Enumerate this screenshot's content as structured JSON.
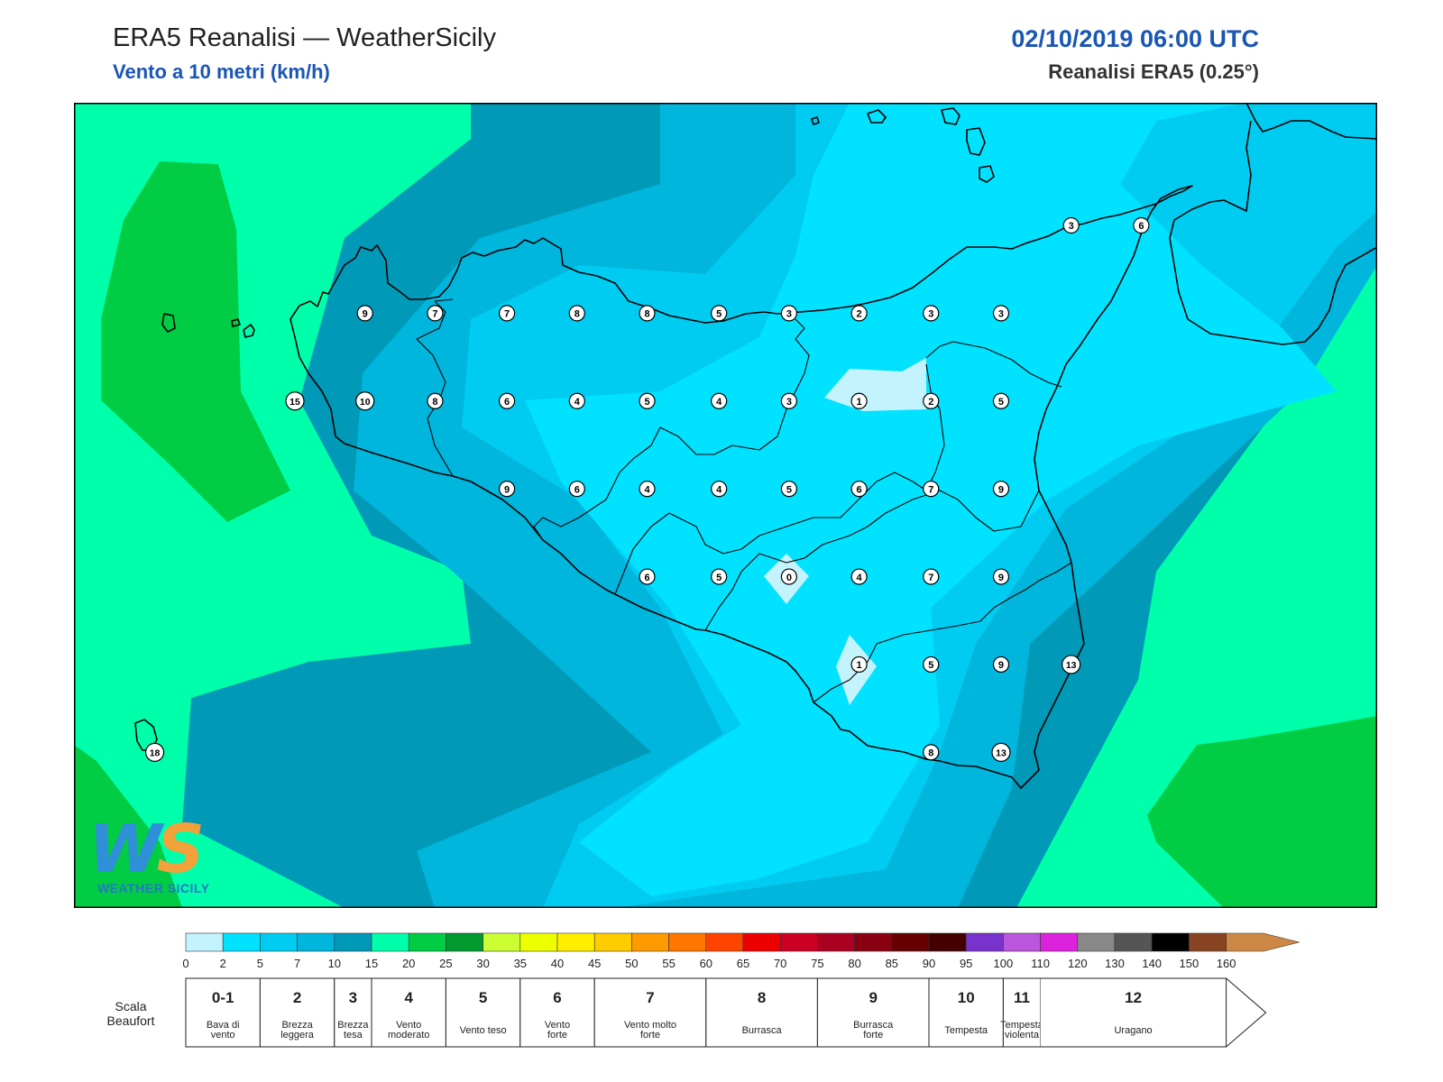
{
  "header": {
    "title": "ERA5 Reanalisi — WeatherSicily",
    "subtitle": "Vento a 10 metri (km/h)",
    "datetime": "02/10/2019 06:00 UTC",
    "resolution": "Reanalisi ERA5 (0.25°)"
  },
  "logo": {
    "letters_w": "W",
    "letters_s": "S",
    "name": "WEATHER SICILY"
  },
  "map": {
    "stations": [
      {
        "v": "9",
        "lon": 12.74,
        "lat": 38.17
      },
      {
        "v": "7",
        "lon": 13.14,
        "lat": 38.17
      },
      {
        "v": "7",
        "lon": 13.55,
        "lat": 38.17
      },
      {
        "v": "8",
        "lon": 13.95,
        "lat": 38.17
      },
      {
        "v": "8",
        "lon": 14.35,
        "lat": 38.17
      },
      {
        "v": "5",
        "lon": 14.76,
        "lat": 38.17
      },
      {
        "v": "3",
        "lon": 15.16,
        "lat": 38.17
      },
      {
        "v": "2",
        "lon": 15.56,
        "lat": 38.17
      },
      {
        "v": "3",
        "lon": 15.97,
        "lat": 38.17
      },
      {
        "v": "3",
        "lon": 16.37,
        "lat": 38.17
      },
      {
        "v": "15",
        "lon": 12.34,
        "lat": 37.77
      },
      {
        "v": "10",
        "lon": 12.74,
        "lat": 37.77
      },
      {
        "v": "8",
        "lon": 13.14,
        "lat": 37.77
      },
      {
        "v": "6",
        "lon": 13.55,
        "lat": 37.77
      },
      {
        "v": "4",
        "lon": 13.95,
        "lat": 37.77
      },
      {
        "v": "5",
        "lon": 14.35,
        "lat": 37.77
      },
      {
        "v": "4",
        "lon": 14.76,
        "lat": 37.77
      },
      {
        "v": "3",
        "lon": 15.16,
        "lat": 37.77
      },
      {
        "v": "1",
        "lon": 15.56,
        "lat": 37.77
      },
      {
        "v": "2",
        "lon": 15.97,
        "lat": 37.77
      },
      {
        "v": "5",
        "lon": 16.37,
        "lat": 37.77
      },
      {
        "v": "9",
        "lon": 13.55,
        "lat": 37.37
      },
      {
        "v": "6",
        "lon": 13.95,
        "lat": 37.37
      },
      {
        "v": "4",
        "lon": 14.35,
        "lat": 37.37
      },
      {
        "v": "4",
        "lon": 14.76,
        "lat": 37.37
      },
      {
        "v": "5",
        "lon": 15.16,
        "lat": 37.37
      },
      {
        "v": "6",
        "lon": 15.56,
        "lat": 37.37
      },
      {
        "v": "7",
        "lon": 15.97,
        "lat": 37.37
      },
      {
        "v": "9",
        "lon": 16.37,
        "lat": 37.37
      },
      {
        "v": "6",
        "lon": 14.35,
        "lat": 36.97
      },
      {
        "v": "5",
        "lon": 14.76,
        "lat": 36.97
      },
      {
        "v": "0",
        "lon": 15.16,
        "lat": 36.97
      },
      {
        "v": "4",
        "lon": 15.56,
        "lat": 36.97
      },
      {
        "v": "7",
        "lon": 15.97,
        "lat": 36.97
      },
      {
        "v": "9",
        "lon": 16.37,
        "lat": 36.97
      },
      {
        "v": "1",
        "lon": 15.56,
        "lat": 36.57
      },
      {
        "v": "5",
        "lon": 15.97,
        "lat": 36.57
      },
      {
        "v": "9",
        "lon": 16.37,
        "lat": 36.57
      },
      {
        "v": "13",
        "lon": 16.77,
        "lat": 36.57
      },
      {
        "v": "8",
        "lon": 15.97,
        "lat": 36.17
      },
      {
        "v": "13",
        "lon": 16.37,
        "lat": 36.17
      },
      {
        "v": "3",
        "lon": 16.77,
        "lat": 38.57
      },
      {
        "v": "6",
        "lon": 17.17,
        "lat": 38.57
      },
      {
        "v": "18",
        "lon": 11.54,
        "lat": 36.17
      }
    ]
  },
  "colorbar": {
    "colors": [
      "#c3f3fd",
      "#00e2ff",
      "#00ccf2",
      "#00b6dc",
      "#0099b8",
      "#00ffaa",
      "#00cc44",
      "#009a2f",
      "#ccff33",
      "#eeff00",
      "#ffee00",
      "#ffcc00",
      "#ff9a00",
      "#ff7700",
      "#ff4400",
      "#ee0000",
      "#cc0022",
      "#aa0022",
      "#880011",
      "#660000",
      "#440000",
      "#7733cc",
      "#bb55dd",
      "#dd22dd",
      "#888888",
      "#555555",
      "#000000",
      "#884422",
      "#cc8844"
    ],
    "ticks": [
      "0",
      "2",
      "5",
      "7",
      "10",
      "15",
      "20",
      "25",
      "30",
      "35",
      "40",
      "45",
      "50",
      "55",
      "60",
      "65",
      "70",
      "75",
      "80",
      "85",
      "90",
      "95",
      "100",
      "110",
      "120",
      "130",
      "140",
      "150",
      "160"
    ]
  },
  "beaufort": {
    "label_line1": "Scala",
    "label_line2": "Beaufort",
    "cells": [
      {
        "num": "0-1",
        "desc1": "Bava di",
        "desc2": "vento",
        "from": 0,
        "to": 2
      },
      {
        "num": "2",
        "desc1": "Brezza",
        "desc2": "leggera",
        "from": 2,
        "to": 4
      },
      {
        "num": "3",
        "desc1": "Brezza",
        "desc2": "tesa",
        "from": 4,
        "to": 5
      },
      {
        "num": "4",
        "desc1": "Vento",
        "desc2": "moderato",
        "from": 5,
        "to": 7
      },
      {
        "num": "5",
        "desc1": "Vento teso",
        "desc2": "",
        "from": 7,
        "to": 9
      },
      {
        "num": "6",
        "desc1": "Vento",
        "desc2": "forte",
        "from": 9,
        "to": 11
      },
      {
        "num": "7",
        "desc1": "Vento molto",
        "desc2": "forte",
        "from": 11,
        "to": 14
      },
      {
        "num": "8",
        "desc1": "Burrasca",
        "desc2": "",
        "from": 14,
        "to": 17
      },
      {
        "num": "9",
        "desc1": "Burrasca",
        "desc2": "forte",
        "from": 17,
        "to": 20
      },
      {
        "num": "10",
        "desc1": "Tempesta",
        "desc2": "",
        "from": 20,
        "to": 22
      },
      {
        "num": "11",
        "desc1": "Tempesta",
        "desc2": "violenta",
        "from": 22,
        "to": 23
      },
      {
        "num": "12",
        "desc1": "Uragano",
        "desc2": "",
        "from": 23,
        "to": 28
      }
    ]
  }
}
